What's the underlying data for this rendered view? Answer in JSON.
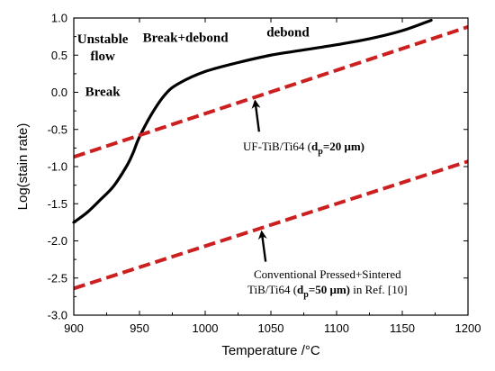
{
  "chart_data": {
    "type": "line",
    "xlabel": "Temperature",
    "xlabel_unit": "/°C",
    "ylabel": "Log(stain rate)",
    "xlim": [
      900,
      1200
    ],
    "ylim": [
      -3.0,
      1.0
    ],
    "xticks": [
      900,
      950,
      1000,
      1050,
      1100,
      1150,
      1200
    ],
    "yticks": [
      1.0,
      0.5,
      0.0,
      -0.5,
      -1.0,
      -1.5,
      -2.0,
      -2.5,
      -3.0
    ],
    "ytick_labels": [
      "1.0",
      "0.5",
      "0.0",
      "-0.5",
      "-1.0",
      "-1.5",
      "-2.0",
      "-2.5",
      "-3.0"
    ],
    "grid": false,
    "series": [
      {
        "style": "solid",
        "color": "#000000",
        "x": [
          900,
          910,
          920,
          930,
          940,
          945,
          950,
          960,
          970,
          980,
          1000,
          1025,
          1050,
          1075,
          1100,
          1125,
          1150,
          1172
        ],
        "y": [
          -1.75,
          -1.62,
          -1.45,
          -1.27,
          -1.0,
          -0.82,
          -0.6,
          -0.27,
          -0.02,
          0.12,
          0.28,
          0.4,
          0.5,
          0.57,
          0.64,
          0.72,
          0.83,
          0.97
        ]
      },
      {
        "style": "dashed",
        "color": "#cc1f1f",
        "x": [
          900,
          1200
        ],
        "y": [
          -0.87,
          0.88
        ]
      },
      {
        "style": "dashed",
        "color": "#cc1f1f",
        "x": [
          900,
          1200
        ],
        "y": [
          -2.64,
          -0.93
        ]
      }
    ],
    "region_labels": [
      {
        "lines": [
          "Unstable",
          "flow"
        ],
        "x": 922,
        "y": 0.66
      },
      {
        "lines": [
          "Break"
        ],
        "x": 922,
        "y": -0.05
      },
      {
        "lines": [
          "Break+debond"
        ],
        "x": 985,
        "y": 0.68
      },
      {
        "lines": [
          "debond"
        ],
        "x": 1063,
        "y": 0.75
      }
    ],
    "annotations": [
      {
        "lines": [
          [
            {
              "t": "UF-TiB/Ti64 ("
            },
            {
              "t": "d",
              "b": true
            },
            {
              "t": "p",
              "b": true,
              "sub": true
            },
            {
              "t": "=20 μm)",
              "b": true
            }
          ]
        ],
        "x": 1075,
        "y": -0.78,
        "arrow_from": [
          1041,
          -0.53
        ],
        "arrow_to": [
          1038,
          -0.12
        ]
      },
      {
        "lines": [
          [
            {
              "t": "Conventional Pressed+Sintered"
            }
          ],
          [
            {
              "t": "TiB/Ti64 ("
            },
            {
              "t": "d",
              "b": true
            },
            {
              "t": "p",
              "b": true,
              "sub": true
            },
            {
              "t": "=50 μm)",
              "b": true
            },
            {
              "t": " in Ref. [10]"
            }
          ]
        ],
        "x": 1093,
        "y": -2.5,
        "arrow_from": [
          1046,
          -2.28
        ],
        "arrow_to": [
          1043,
          -1.88
        ]
      }
    ]
  }
}
